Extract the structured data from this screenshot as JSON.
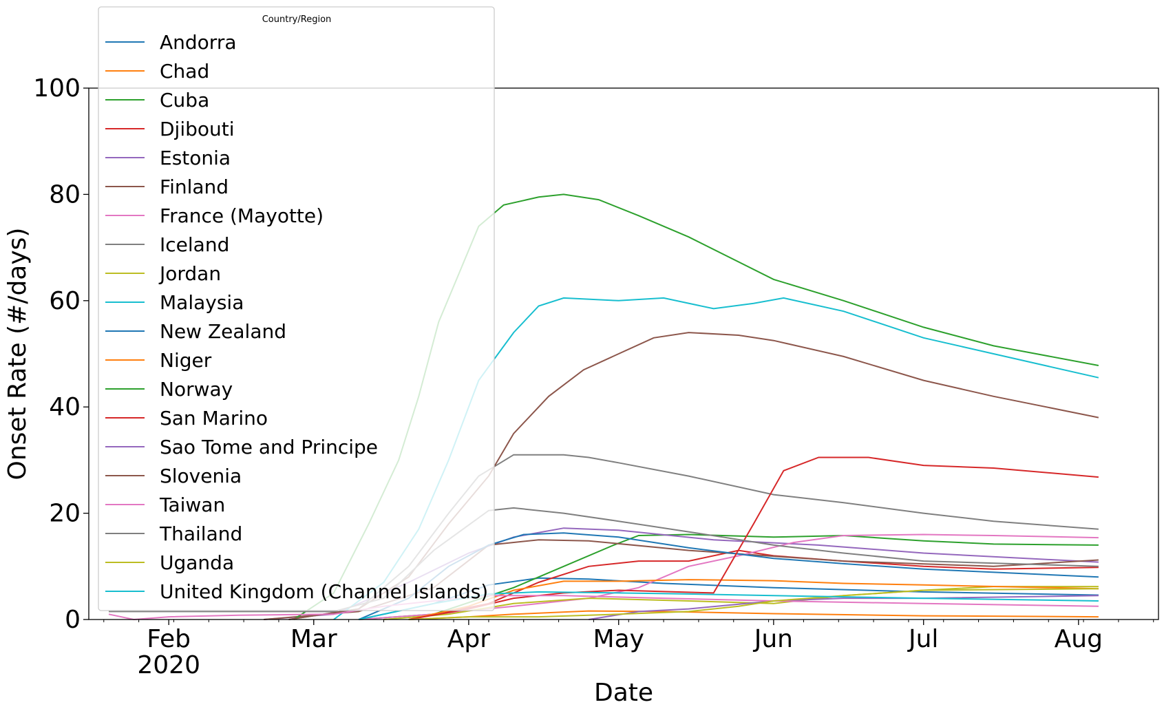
{
  "chart_data": {
    "type": "line",
    "xlabel": "Date",
    "ylabel": "Onset Rate (#/days)",
    "ylim": [
      0,
      100
    ],
    "xlim": [
      "2020-01-16",
      "2020-08-17"
    ],
    "x_ticks": [
      {
        "date": "2020-02-01",
        "label": "Feb",
        "sublabel": "2020"
      },
      {
        "date": "2020-03-01",
        "label": "Mar",
        "sublabel": ""
      },
      {
        "date": "2020-04-01",
        "label": "Apr",
        "sublabel": ""
      },
      {
        "date": "2020-05-01",
        "label": "May",
        "sublabel": ""
      },
      {
        "date": "2020-06-01",
        "label": "Jun",
        "sublabel": ""
      },
      {
        "date": "2020-07-01",
        "label": "Jul",
        "sublabel": ""
      },
      {
        "date": "2020-08-01",
        "label": "Aug",
        "sublabel": ""
      }
    ],
    "y_ticks": [
      0,
      20,
      40,
      60,
      80,
      100
    ],
    "legend": {
      "title": "Country/Region",
      "position": "upper left"
    },
    "grid": false,
    "series": [
      {
        "name": "Andorra",
        "color": "#1f77b4",
        "points": [
          [
            "2020-03-10",
            0
          ],
          [
            "2020-03-25",
            3
          ],
          [
            "2020-04-05",
            6.5
          ],
          [
            "2020-04-15",
            7.8
          ],
          [
            "2020-04-25",
            7.6
          ],
          [
            "2020-05-10",
            6.8
          ],
          [
            "2020-06-01",
            6
          ],
          [
            "2020-07-01",
            5.2
          ],
          [
            "2020-08-05",
            4.6
          ]
        ]
      },
      {
        "name": "Chad",
        "color": "#ff7f0e",
        "points": [
          [
            "2020-03-20",
            0
          ],
          [
            "2020-04-01",
            0.5
          ],
          [
            "2020-04-10",
            1
          ],
          [
            "2020-04-25",
            1.6
          ],
          [
            "2020-05-10",
            1.5
          ],
          [
            "2020-06-01",
            1.1
          ],
          [
            "2020-07-01",
            0.7
          ],
          [
            "2020-08-05",
            0.5
          ]
        ]
      },
      {
        "name": "Cuba",
        "color": "#2ca02c",
        "points": [
          [
            "2020-03-10",
            0
          ],
          [
            "2020-03-25",
            1
          ],
          [
            "2020-04-10",
            6
          ],
          [
            "2020-04-20",
            10
          ],
          [
            "2020-04-30",
            14
          ],
          [
            "2020-05-05",
            15.8
          ],
          [
            "2020-05-15",
            16
          ],
          [
            "2020-06-01",
            15.5
          ],
          [
            "2020-06-15",
            15.8
          ],
          [
            "2020-07-01",
            14.8
          ],
          [
            "2020-07-15",
            14.2
          ],
          [
            "2020-08-05",
            14
          ]
        ]
      },
      {
        "name": "Djibouti",
        "color": "#d62728",
        "points": [
          [
            "2020-03-20",
            0
          ],
          [
            "2020-04-05",
            3
          ],
          [
            "2020-04-15",
            7
          ],
          [
            "2020-04-25",
            10
          ],
          [
            "2020-05-05",
            11
          ],
          [
            "2020-05-15",
            11
          ],
          [
            "2020-05-25",
            13
          ],
          [
            "2020-06-01",
            12
          ],
          [
            "2020-06-15",
            11
          ],
          [
            "2020-07-01",
            10
          ],
          [
            "2020-07-15",
            9.5
          ],
          [
            "2020-08-05",
            9.8
          ]
        ]
      },
      {
        "name": "Estonia",
        "color": "#9467bd",
        "points": [
          [
            "2020-02-20",
            0
          ],
          [
            "2020-03-05",
            1
          ],
          [
            "2020-03-20",
            7
          ],
          [
            "2020-04-01",
            12.5
          ],
          [
            "2020-04-10",
            15.5
          ],
          [
            "2020-04-20",
            17.2
          ],
          [
            "2020-05-01",
            16.8
          ],
          [
            "2020-05-20",
            15
          ],
          [
            "2020-06-10",
            14
          ],
          [
            "2020-07-01",
            12.5
          ],
          [
            "2020-08-05",
            10.8
          ]
        ]
      },
      {
        "name": "Finland",
        "color": "#8c564b",
        "points": [
          [
            "2020-02-20",
            0
          ],
          [
            "2020-03-10",
            1.5
          ],
          [
            "2020-03-25",
            6
          ],
          [
            "2020-04-05",
            14
          ],
          [
            "2020-04-15",
            15
          ],
          [
            "2020-04-25",
            14.8
          ],
          [
            "2020-05-15",
            13
          ],
          [
            "2020-06-15",
            11
          ],
          [
            "2020-07-15",
            10
          ],
          [
            "2020-08-05",
            11.2
          ]
        ]
      },
      {
        "name": "France (Mayotte)",
        "color": "#e377c2",
        "points": [
          [
            "2020-03-10",
            0
          ],
          [
            "2020-03-25",
            1
          ],
          [
            "2020-04-10",
            2.5
          ],
          [
            "2020-04-25",
            4
          ],
          [
            "2020-05-05",
            6
          ],
          [
            "2020-05-15",
            10
          ],
          [
            "2020-05-25",
            12
          ],
          [
            "2020-06-05",
            14.5
          ],
          [
            "2020-06-15",
            15.8
          ],
          [
            "2020-07-01",
            16
          ],
          [
            "2020-07-15",
            15.8
          ],
          [
            "2020-08-05",
            15.4
          ]
        ]
      },
      {
        "name": "Iceland",
        "color": "#7f7f7f",
        "points": [
          [
            "2020-02-25",
            0
          ],
          [
            "2020-03-10",
            2
          ],
          [
            "2020-03-20",
            10
          ],
          [
            "2020-03-28",
            20
          ],
          [
            "2020-04-03",
            27
          ],
          [
            "2020-04-10",
            31
          ],
          [
            "2020-04-20",
            31
          ],
          [
            "2020-04-25",
            30.5
          ],
          [
            "2020-05-01",
            29.5
          ],
          [
            "2020-05-15",
            27
          ],
          [
            "2020-06-01",
            23.5
          ],
          [
            "2020-06-15",
            22
          ],
          [
            "2020-07-01",
            20
          ],
          [
            "2020-07-15",
            18.5
          ],
          [
            "2020-08-05",
            17
          ]
        ]
      },
      {
        "name": "Jordan",
        "color": "#bcbd22",
        "points": [
          [
            "2020-03-15",
            0
          ],
          [
            "2020-03-28",
            1
          ],
          [
            "2020-04-10",
            3
          ],
          [
            "2020-04-25",
            4
          ],
          [
            "2020-05-15",
            3.5
          ],
          [
            "2020-06-01",
            3
          ],
          [
            "2020-06-15",
            4.5
          ],
          [
            "2020-07-01",
            5.5
          ],
          [
            "2020-07-15",
            6.2
          ],
          [
            "2020-08-05",
            6.2
          ]
        ]
      },
      {
        "name": "Malaysia",
        "color": "#17becf",
        "points": [
          [
            "2020-03-05",
            0
          ],
          [
            "2020-03-15",
            7
          ],
          [
            "2020-03-22",
            17
          ],
          [
            "2020-03-28",
            30
          ],
          [
            "2020-04-03",
            45
          ],
          [
            "2020-04-10",
            54
          ],
          [
            "2020-04-15",
            59
          ],
          [
            "2020-04-20",
            60.5
          ],
          [
            "2020-05-01",
            60
          ],
          [
            "2020-05-10",
            60.5
          ],
          [
            "2020-05-20",
            58.5
          ],
          [
            "2020-05-28",
            59.5
          ],
          [
            "2020-06-03",
            60.5
          ],
          [
            "2020-06-15",
            58
          ],
          [
            "2020-07-01",
            53
          ],
          [
            "2020-07-15",
            50
          ],
          [
            "2020-08-05",
            45.5
          ]
        ]
      },
      {
        "name": "New Zealand",
        "color": "#1f77b4",
        "points": [
          [
            "2020-03-10",
            0
          ],
          [
            "2020-03-20",
            4
          ],
          [
            "2020-03-28",
            10
          ],
          [
            "2020-04-05",
            14
          ],
          [
            "2020-04-12",
            16
          ],
          [
            "2020-04-20",
            16.3
          ],
          [
            "2020-05-01",
            15.5
          ],
          [
            "2020-05-15",
            13.5
          ],
          [
            "2020-06-01",
            11.5
          ],
          [
            "2020-06-15",
            10.5
          ],
          [
            "2020-07-01",
            9.5
          ],
          [
            "2020-08-05",
            8
          ]
        ]
      },
      {
        "name": "Niger",
        "color": "#ff7f0e",
        "points": [
          [
            "2020-03-20",
            0
          ],
          [
            "2020-04-01",
            2.5
          ],
          [
            "2020-04-10",
            5.5
          ],
          [
            "2020-04-20",
            7.2
          ],
          [
            "2020-05-01",
            7.2
          ],
          [
            "2020-05-15",
            7.5
          ],
          [
            "2020-06-01",
            7.3
          ],
          [
            "2020-06-15",
            6.8
          ],
          [
            "2020-07-01",
            6.5
          ],
          [
            "2020-08-05",
            5.8
          ]
        ]
      },
      {
        "name": "Norway",
        "color": "#2ca02c",
        "points": [
          [
            "2020-02-26",
            0
          ],
          [
            "2020-03-05",
            5
          ],
          [
            "2020-03-12",
            18
          ],
          [
            "2020-03-18",
            30
          ],
          [
            "2020-03-22",
            42
          ],
          [
            "2020-03-26",
            56
          ],
          [
            "2020-03-30",
            65
          ],
          [
            "2020-04-03",
            74
          ],
          [
            "2020-04-08",
            78
          ],
          [
            "2020-04-15",
            79.5
          ],
          [
            "2020-04-20",
            80
          ],
          [
            "2020-04-27",
            79
          ],
          [
            "2020-05-05",
            76
          ],
          [
            "2020-05-15",
            72
          ],
          [
            "2020-06-01",
            64
          ],
          [
            "2020-06-15",
            60
          ],
          [
            "2020-07-01",
            55
          ],
          [
            "2020-07-15",
            51.5
          ],
          [
            "2020-08-05",
            47.8
          ]
        ]
      },
      {
        "name": "San Marino",
        "color": "#d62728",
        "points": [
          [
            "2020-03-20",
            0
          ],
          [
            "2020-04-01",
            2
          ],
          [
            "2020-04-10",
            4
          ],
          [
            "2020-04-20",
            5
          ],
          [
            "2020-05-01",
            5.5
          ],
          [
            "2020-05-20",
            5
          ],
          [
            "2020-05-28",
            18
          ],
          [
            "2020-06-03",
            28
          ],
          [
            "2020-06-10",
            30.5
          ],
          [
            "2020-06-20",
            30.5
          ],
          [
            "2020-07-01",
            29
          ],
          [
            "2020-07-15",
            28.5
          ],
          [
            "2020-08-05",
            26.8
          ]
        ]
      },
      {
        "name": "Sao Tome and Principe",
        "color": "#9467bd",
        "points": [
          [
            "2020-04-25",
            0
          ],
          [
            "2020-05-05",
            1.5
          ],
          [
            "2020-05-15",
            2
          ],
          [
            "2020-06-01",
            3.5
          ],
          [
            "2020-06-15",
            4
          ],
          [
            "2020-07-01",
            4
          ],
          [
            "2020-08-05",
            4.5
          ]
        ]
      },
      {
        "name": "Slovenia",
        "color": "#8c564b",
        "points": [
          [
            "2020-02-25",
            0
          ],
          [
            "2020-03-10",
            2
          ],
          [
            "2020-03-20",
            8
          ],
          [
            "2020-03-28",
            18
          ],
          [
            "2020-04-05",
            27
          ],
          [
            "2020-04-10",
            35
          ],
          [
            "2020-04-17",
            42
          ],
          [
            "2020-04-24",
            47
          ],
          [
            "2020-05-01",
            50
          ],
          [
            "2020-05-08",
            53
          ],
          [
            "2020-05-15",
            54
          ],
          [
            "2020-05-25",
            53.5
          ],
          [
            "2020-06-01",
            52.5
          ],
          [
            "2020-06-15",
            49.5
          ],
          [
            "2020-07-01",
            45
          ],
          [
            "2020-07-15",
            42
          ],
          [
            "2020-08-05",
            38
          ]
        ]
      },
      {
        "name": "Taiwan",
        "color": "#e377c2",
        "points": [
          [
            "2020-01-20",
            1
          ],
          [
            "2020-01-25",
            0
          ],
          [
            "2020-02-01",
            0.5
          ],
          [
            "2020-02-15",
            0.8
          ],
          [
            "2020-03-05",
            1
          ],
          [
            "2020-03-15",
            2.5
          ],
          [
            "2020-03-25",
            3.5
          ],
          [
            "2020-04-05",
            4.5
          ],
          [
            "2020-04-20",
            4.5
          ],
          [
            "2020-05-10",
            4
          ],
          [
            "2020-06-01",
            3.5
          ],
          [
            "2020-07-01",
            3
          ],
          [
            "2020-08-05",
            2.5
          ]
        ]
      },
      {
        "name": "Thailand",
        "color": "#7f7f7f",
        "points": [
          [
            "2020-01-20",
            1.5
          ],
          [
            "2020-02-01",
            1.5
          ],
          [
            "2020-02-15",
            1.5
          ],
          [
            "2020-03-05",
            1.5
          ],
          [
            "2020-03-15",
            4
          ],
          [
            "2020-03-25",
            13
          ],
          [
            "2020-04-05",
            20.5
          ],
          [
            "2020-04-10",
            21
          ],
          [
            "2020-04-20",
            20
          ],
          [
            "2020-05-01",
            18.5
          ],
          [
            "2020-05-15",
            16.5
          ],
          [
            "2020-06-01",
            14
          ],
          [
            "2020-06-15",
            12.5
          ],
          [
            "2020-07-01",
            11
          ],
          [
            "2020-08-05",
            10
          ]
        ]
      },
      {
        "name": "Uganda",
        "color": "#bcbd22",
        "points": [
          [
            "2020-03-20",
            0
          ],
          [
            "2020-04-01",
            0.5
          ],
          [
            "2020-04-15",
            0.5
          ],
          [
            "2020-05-01",
            1
          ],
          [
            "2020-05-15",
            1.5
          ],
          [
            "2020-05-25",
            2.5
          ],
          [
            "2020-06-01",
            3.5
          ],
          [
            "2020-06-15",
            4.5
          ],
          [
            "2020-07-01",
            5.5
          ],
          [
            "2020-08-05",
            5.8
          ]
        ]
      },
      {
        "name": "United Kingdom (Channel Islands)",
        "color": "#17becf",
        "points": [
          [
            "2020-03-10",
            0
          ],
          [
            "2020-03-25",
            3
          ],
          [
            "2020-04-05",
            4.8
          ],
          [
            "2020-04-15",
            5.2
          ],
          [
            "2020-05-01",
            5
          ],
          [
            "2020-05-15",
            4.8
          ],
          [
            "2020-06-01",
            4.5
          ],
          [
            "2020-07-01",
            4
          ],
          [
            "2020-08-05",
            3.5
          ]
        ]
      }
    ]
  }
}
